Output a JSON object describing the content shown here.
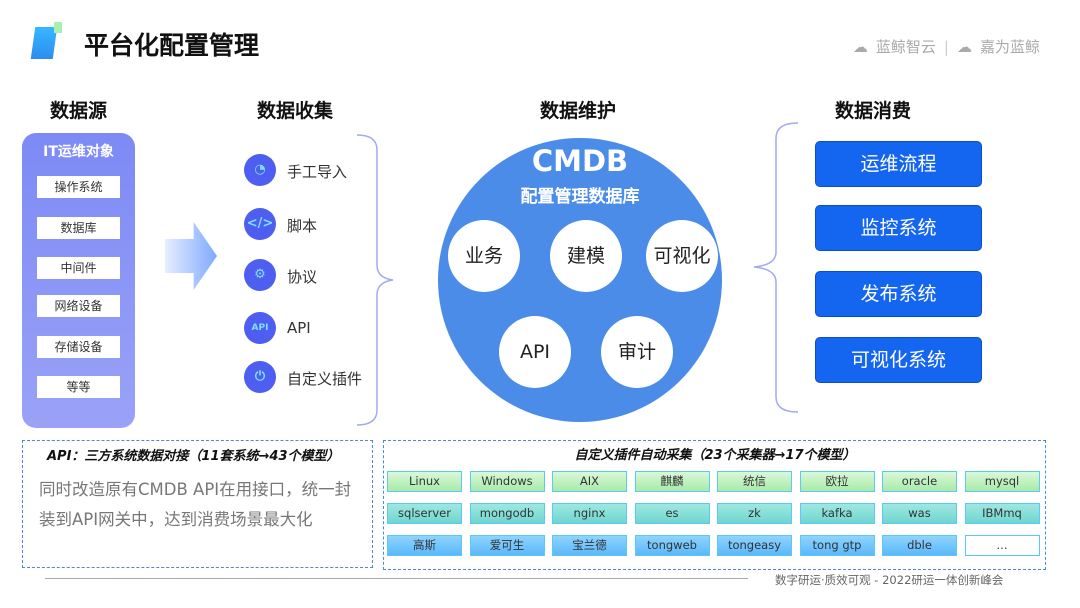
{
  "header": {
    "title": "平台化配置管理",
    "brand_left": "蓝鲸智云",
    "brand_sep": "|",
    "brand_right": "嘉为蓝鲸"
  },
  "columns": {
    "source": "数据源",
    "collect": "数据收集",
    "maintain": "数据维护",
    "consume": "数据消费"
  },
  "source": {
    "title": "IT运维对象",
    "items": [
      "操作系统",
      "数据库",
      "中间件",
      "网络设备",
      "存储设备",
      "等等"
    ]
  },
  "collect": {
    "items": [
      {
        "label": "手工导入",
        "icon": "gauge-icon"
      },
      {
        "label": "脚本",
        "icon": "code-icon"
      },
      {
        "label": "协议",
        "icon": "protocol-icon"
      },
      {
        "label": "API",
        "icon": "api-monitor-icon"
      },
      {
        "label": "自定义插件",
        "icon": "plug-icon"
      }
    ]
  },
  "cmdb": {
    "title": "CMDB",
    "subtitle": "配置管理数据库",
    "modules": [
      "业务",
      "建模",
      "可视化",
      "API",
      "审计"
    ]
  },
  "consume": {
    "items": [
      "运维流程",
      "监控系统",
      "发布系统",
      "可视化系统"
    ]
  },
  "api_box": {
    "title": "API：三方系统数据对接（11套系统→43个模型）",
    "body": "同时改造原有CMDB API在用接口，统一封装到API网关中，达到消费场景最大化"
  },
  "plugin_box": {
    "title": "自定义插件自动采集（23个采集器→17个模型）",
    "rows": [
      [
        "Linux",
        "Windows",
        "AIX",
        "麒麟",
        "统信",
        "欧拉",
        "oracle",
        "mysql"
      ],
      [
        "sqlserver",
        "mongodb",
        "nginx",
        "es",
        "zk",
        "kafka",
        "was",
        "IBMmq"
      ],
      [
        "高斯",
        "爱可生",
        "宝兰德",
        "tongweb",
        "tongeasy",
        "tong gtp",
        "dble",
        "..."
      ]
    ]
  },
  "footer": {
    "text": "数字研运·质效可观  -  2022研运一体创新峰会"
  },
  "colors": {
    "accent": "#1466f0",
    "circle": "#4a8ce8",
    "source_panel": "#8b95f6",
    "icon_bg": "#4e5ef0"
  }
}
